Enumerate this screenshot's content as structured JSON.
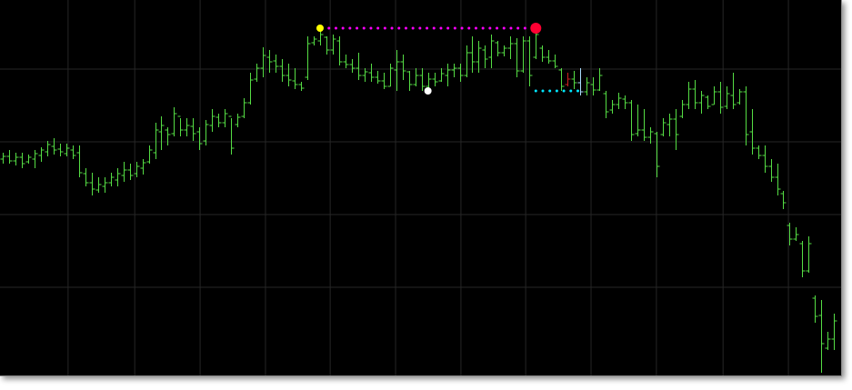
{
  "chart_data": {
    "type": "ohlc",
    "color": "#55dd44",
    "grid": true,
    "grid_color": "#262626",
    "xlim": [
      -0.43,
      132.1
    ],
    "ylim": [
      0,
      413
    ],
    "xticks": [
      10.3,
      20.8,
      31.1,
      41.4,
      51.6,
      61.9,
      72.2,
      82.4,
      92.7,
      103.0,
      113.5,
      123.8
    ],
    "yticks": [
      97,
      177,
      257,
      337
    ],
    "open": [
      238,
      241,
      236,
      240,
      235,
      238,
      242,
      246,
      252,
      249,
      244,
      248,
      245,
      222,
      212,
      204,
      208,
      212,
      215,
      220,
      226,
      222,
      228,
      235,
      245,
      268,
      270,
      266,
      285,
      270,
      274,
      268,
      258,
      275,
      284,
      278,
      285,
      276,
      285,
      300,
      326,
      338,
      350,
      346,
      340,
      330,
      324,
      320,
      328,
      366,
      368,
      372,
      358,
      368,
      345,
      342,
      338,
      330,
      333,
      328,
      324,
      318,
      336,
      345,
      334,
      320,
      330,
      318,
      326,
      324,
      330,
      336,
      338,
      330,
      355,
      345,
      358,
      350,
      366,
      355,
      360,
      365,
      335,
      368,
      350,
      360,
      350,
      346,
      336,
      320,
      326,
      322,
      312,
      320,
      314,
      310,
      292,
      298,
      304,
      300,
      266,
      270,
      262,
      266,
      265,
      276,
      282,
      285,
      298,
      315,
      300,
      306,
      298,
      312,
      296,
      308,
      300,
      312,
      268,
      250,
      242,
      230,
      218,
      200,
      165,
      150,
      145,
      115,
      85,
      66,
      30,
      40
    ],
    "high": [
      245,
      248,
      245,
      245,
      243,
      248,
      251,
      258,
      261,
      255,
      255,
      253,
      253,
      228,
      223,
      218,
      218,
      223,
      228,
      235,
      233,
      235,
      238,
      253,
      278,
      285,
      273,
      295,
      283,
      283,
      283,
      273,
      281,
      293,
      288,
      293,
      283,
      288,
      305,
      333,
      343,
      361,
      358,
      353,
      348,
      343,
      338,
      323,
      373,
      373,
      382,
      373,
      375,
      373,
      353,
      348,
      355,
      338,
      343,
      335,
      333,
      343,
      358,
      353,
      335,
      338,
      338,
      333,
      333,
      338,
      343,
      343,
      343,
      363,
      373,
      368,
      363,
      375,
      368,
      363,
      373,
      371,
      373,
      373,
      382,
      363,
      358,
      353,
      338,
      333,
      335,
      338,
      328,
      328,
      338,
      313,
      303,
      311,
      308,
      303,
      298,
      293,
      273,
      268,
      283,
      288,
      293,
      303,
      323,
      325,
      313,
      308,
      318,
      323,
      318,
      333,
      315,
      318,
      293,
      253,
      253,
      238,
      233,
      203,
      168,
      163,
      148,
      153,
      88,
      83,
      48,
      68
    ],
    "low": [
      233,
      233,
      231,
      228,
      233,
      228,
      235,
      241,
      243,
      241,
      241,
      238,
      218,
      208,
      198,
      201,
      201,
      208,
      208,
      213,
      215,
      218,
      221,
      233,
      238,
      248,
      253,
      263,
      263,
      263,
      258,
      248,
      253,
      268,
      273,
      273,
      243,
      273,
      283,
      298,
      323,
      328,
      333,
      333,
      323,
      318,
      315,
      313,
      325,
      363,
      363,
      353,
      353,
      341,
      338,
      333,
      325,
      323,
      323,
      321,
      315,
      318,
      313,
      325,
      313,
      318,
      313,
      313,
      318,
      323,
      318,
      328,
      323,
      328,
      333,
      333,
      338,
      338,
      351,
      351,
      348,
      328,
      333,
      318,
      348,
      345,
      343,
      338,
      313,
      318,
      315,
      308,
      308,
      308,
      313,
      283,
      288,
      293,
      293,
      258,
      263,
      258,
      255,
      218,
      263,
      263,
      248,
      283,
      293,
      293,
      288,
      293,
      298,
      288,
      293,
      293,
      298,
      253,
      243,
      238,
      223,
      213,
      198,
      183,
      143,
      148,
      108,
      113,
      58,
      3,
      28,
      28
    ],
    "close": [
      241,
      236,
      240,
      233,
      240,
      244,
      248,
      254,
      248,
      246,
      250,
      242,
      223,
      212,
      205,
      210,
      212,
      218,
      222,
      226,
      220,
      230,
      234,
      248,
      270,
      275,
      265,
      288,
      270,
      275,
      266,
      255,
      276,
      285,
      278,
      288,
      250,
      284,
      300,
      325,
      338,
      352,
      345,
      340,
      330,
      325,
      320,
      316,
      365,
      370,
      375,
      358,
      370,
      345,
      342,
      338,
      330,
      334,
      328,
      324,
      318,
      338,
      345,
      335,
      320,
      330,
      318,
      326,
      323,
      332,
      336,
      338,
      330,
      355,
      345,
      360,
      348,
      368,
      355,
      360,
      365,
      335,
      368,
      330,
      375,
      350,
      346,
      340,
      318,
      326,
      322,
      312,
      322,
      314,
      330,
      290,
      298,
      305,
      300,
      265,
      270,
      262,
      268,
      230,
      278,
      282,
      265,
      298,
      315,
      300,
      308,
      296,
      312,
      295,
      310,
      298,
      312,
      265,
      250,
      242,
      230,
      218,
      205,
      190,
      150,
      155,
      115,
      145,
      65,
      35,
      40,
      60
    ],
    "highlights": [
      {
        "index": 89,
        "color": "#cc2020"
      },
      {
        "index": 91,
        "color": "#aaddff"
      }
    ],
    "levels": [
      {
        "from": 51.4,
        "to": 84,
        "value": 382,
        "color": "#ff00ff"
      },
      {
        "from": 84,
        "to": 91,
        "value": 313,
        "color": "#00e5ff"
      }
    ],
    "markers": [
      {
        "index": 50,
        "value": 382,
        "color": "#ffff00",
        "size": 4
      },
      {
        "index": 67,
        "value": 313,
        "color": "#ffffff",
        "size": 4
      },
      {
        "index": 84,
        "value": 382,
        "color": "#ff0033",
        "size": 6
      }
    ]
  }
}
